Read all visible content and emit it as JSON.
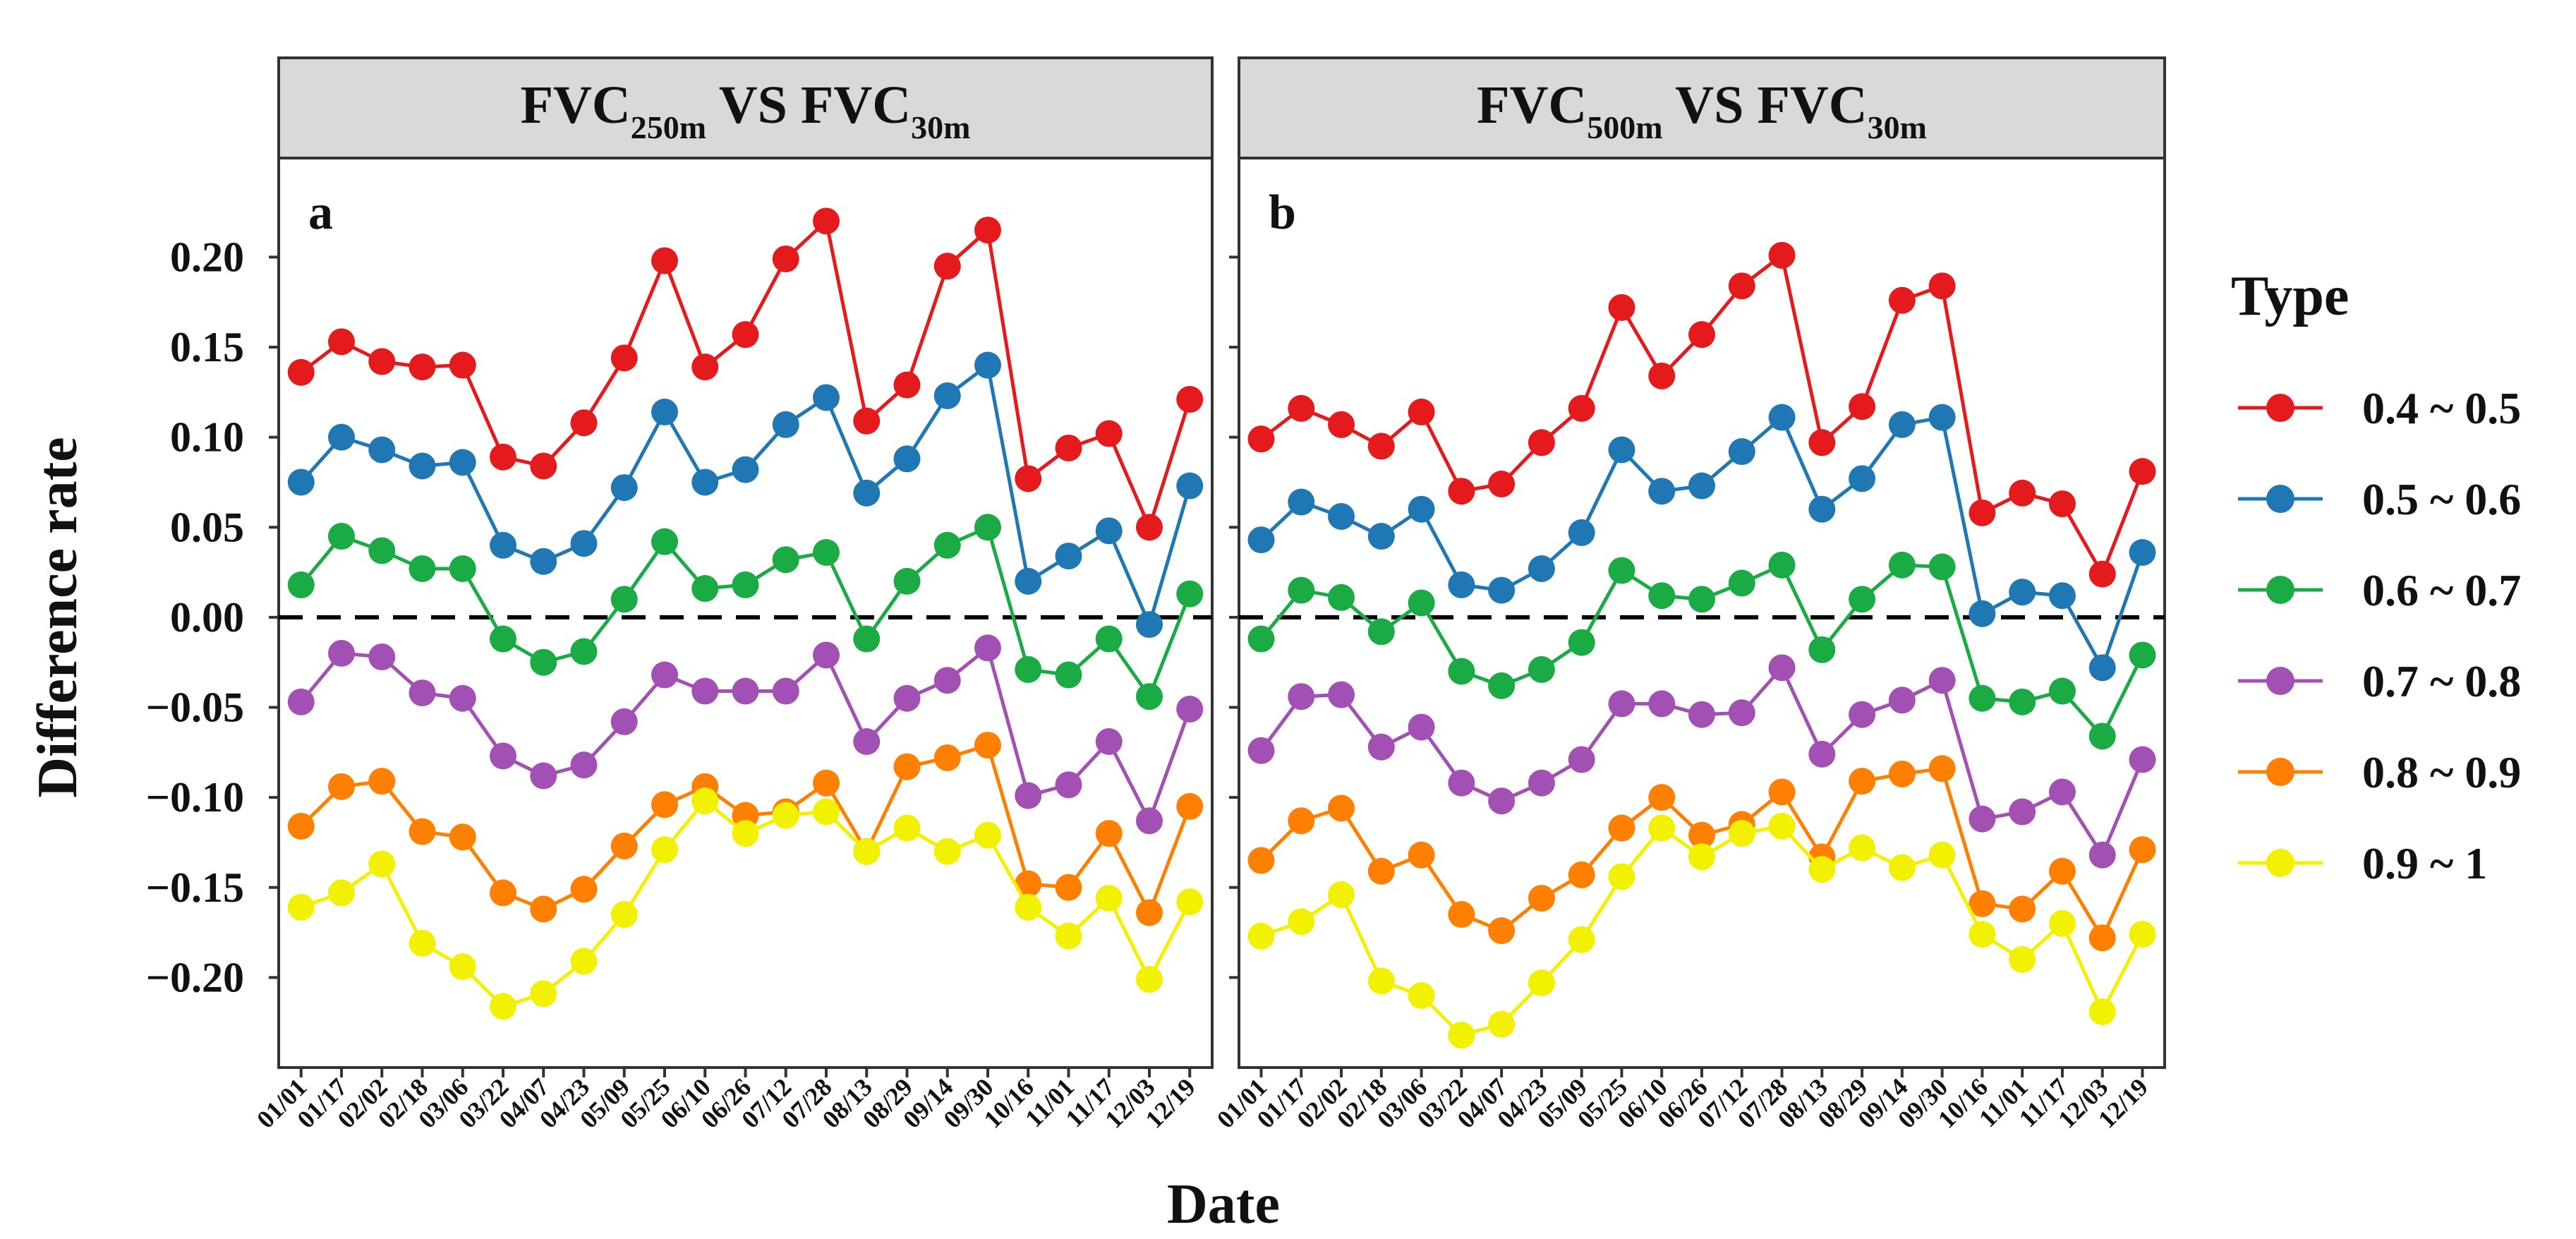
{
  "chart_data": {
    "type": "line",
    "y_axis_label": "Difference rate",
    "x_axis_label": "Date",
    "ylim": [
      -0.25,
      0.255
    ],
    "y_ticks": [
      "0.20",
      "0.15",
      "0.10",
      "0.05",
      "0.00",
      "−0.05",
      "−0.10",
      "−0.15",
      "−0.20"
    ],
    "y_tick_values": [
      0.2,
      0.15,
      0.1,
      0.05,
      0.0,
      -0.05,
      -0.1,
      -0.15,
      -0.2
    ],
    "reference_line": 0.0,
    "dates": [
      "01/01",
      "01/17",
      "02/02",
      "02/18",
      "03/06",
      "03/22",
      "04/07",
      "04/23",
      "05/09",
      "05/25",
      "06/10",
      "06/26",
      "07/12",
      "07/28",
      "08/13",
      "08/29",
      "09/14",
      "09/30",
      "10/16",
      "11/01",
      "11/17",
      "12/03",
      "12/19"
    ],
    "legend": {
      "title": "Type",
      "entries": [
        {
          "label": "0.4 ~ 0.5",
          "color": "#e41a1c"
        },
        {
          "label": "0.5 ~ 0.6",
          "color": "#1f78b4"
        },
        {
          "label": "0.6 ~ 0.7",
          "color": "#1aab44"
        },
        {
          "label": "0.7 ~ 0.8",
          "color": "#a350b5"
        },
        {
          "label": "0.8 ~ 0.9",
          "color": "#ff7f00"
        },
        {
          "label": "0.9 ~ 1",
          "color": "#f2f200"
        }
      ]
    },
    "panels": [
      {
        "letter": "a",
        "title": {
          "main": "FVC",
          "sub1": "250m",
          "vs": " VS FVC",
          "sub2": "30m"
        },
        "series": [
          {
            "name": "0.4 ~ 0.5",
            "values": [
              0.136,
              0.153,
              0.142,
              0.139,
              0.14,
              0.089,
              0.084,
              0.108,
              0.144,
              0.198,
              0.139,
              0.157,
              0.199,
              0.22,
              0.109,
              0.129,
              0.195,
              0.215,
              0.077,
              0.094,
              0.102,
              0.05,
              0.121
            ]
          },
          {
            "name": "0.5 ~ 0.6",
            "values": [
              0.075,
              0.1,
              0.093,
              0.084,
              0.086,
              0.04,
              0.031,
              0.041,
              0.072,
              0.114,
              0.075,
              0.082,
              0.107,
              0.122,
              0.069,
              0.088,
              0.123,
              0.14,
              0.02,
              0.034,
              0.048,
              -0.004,
              0.073
            ]
          },
          {
            "name": "0.6 ~ 0.7",
            "values": [
              0.018,
              0.045,
              0.037,
              0.027,
              0.027,
              -0.012,
              -0.025,
              -0.019,
              0.01,
              0.042,
              0.016,
              0.018,
              0.032,
              0.036,
              -0.012,
              0.02,
              0.04,
              0.05,
              -0.029,
              -0.032,
              -0.012,
              -0.044,
              0.013
            ]
          },
          {
            "name": "0.7 ~ 0.8",
            "values": [
              -0.047,
              -0.02,
              -0.022,
              -0.042,
              -0.045,
              -0.077,
              -0.088,
              -0.082,
              -0.058,
              -0.032,
              -0.041,
              -0.041,
              -0.041,
              -0.021,
              -0.069,
              -0.045,
              -0.035,
              -0.017,
              -0.099,
              -0.093,
              -0.069,
              -0.113,
              -0.051
            ]
          },
          {
            "name": "0.8 ~ 0.9",
            "values": [
              -0.116,
              -0.094,
              -0.091,
              -0.119,
              -0.122,
              -0.153,
              -0.162,
              -0.151,
              -0.127,
              -0.104,
              -0.094,
              -0.11,
              -0.108,
              -0.092,
              -0.13,
              -0.083,
              -0.078,
              -0.071,
              -0.148,
              -0.15,
              -0.12,
              -0.164,
              -0.105
            ]
          },
          {
            "name": "0.9 ~ 1",
            "values": [
              -0.161,
              -0.153,
              -0.137,
              -0.181,
              -0.194,
              -0.216,
              -0.209,
              -0.191,
              -0.165,
              -0.129,
              -0.102,
              -0.12,
              -0.11,
              -0.108,
              -0.13,
              -0.117,
              -0.13,
              -0.121,
              -0.161,
              -0.177,
              -0.156,
              -0.201,
              -0.158
            ]
          }
        ]
      },
      {
        "letter": "b",
        "title": {
          "main": "FVC",
          "sub1": "500m",
          "vs": " VS FVC",
          "sub2": "30m"
        },
        "series": [
          {
            "name": "0.4 ~ 0.5",
            "values": [
              0.099,
              0.116,
              0.107,
              0.095,
              0.114,
              0.07,
              0.074,
              0.097,
              0.116,
              0.172,
              0.134,
              0.157,
              0.184,
              0.201,
              0.097,
              0.117,
              0.176,
              0.184,
              0.058,
              0.069,
              0.063,
              0.024,
              0.081
            ]
          },
          {
            "name": "0.5 ~ 0.6",
            "values": [
              0.043,
              0.064,
              0.056,
              0.045,
              0.06,
              0.018,
              0.015,
              0.027,
              0.047,
              0.093,
              0.07,
              0.073,
              0.092,
              0.111,
              0.06,
              0.077,
              0.107,
              0.111,
              0.002,
              0.014,
              0.012,
              -0.028,
              0.036
            ]
          },
          {
            "name": "0.6 ~ 0.7",
            "values": [
              -0.012,
              0.015,
              0.011,
              -0.008,
              0.008,
              -0.03,
              -0.038,
              -0.029,
              -0.014,
              0.026,
              0.012,
              0.01,
              0.019,
              0.029,
              -0.018,
              0.01,
              0.029,
              0.028,
              -0.045,
              -0.047,
              -0.041,
              -0.066,
              -0.021
            ]
          },
          {
            "name": "0.7 ~ 0.8",
            "values": [
              -0.074,
              -0.044,
              -0.043,
              -0.072,
              -0.061,
              -0.092,
              -0.102,
              -0.092,
              -0.079,
              -0.048,
              -0.048,
              -0.054,
              -0.053,
              -0.028,
              -0.076,
              -0.054,
              -0.046,
              -0.035,
              -0.112,
              -0.108,
              -0.097,
              -0.132,
              -0.079
            ]
          },
          {
            "name": "0.8 ~ 0.9",
            "values": [
              -0.135,
              -0.113,
              -0.106,
              -0.141,
              -0.132,
              -0.165,
              -0.174,
              -0.156,
              -0.143,
              -0.117,
              -0.1,
              -0.121,
              -0.115,
              -0.097,
              -0.133,
              -0.091,
              -0.087,
              -0.084,
              -0.159,
              -0.162,
              -0.141,
              -0.178,
              -0.129
            ]
          },
          {
            "name": "0.9 ~ 1",
            "values": [
              -0.177,
              -0.169,
              -0.154,
              -0.202,
              -0.21,
              -0.232,
              -0.226,
              -0.203,
              -0.179,
              -0.144,
              -0.117,
              -0.133,
              -0.12,
              -0.116,
              -0.14,
              -0.128,
              -0.139,
              -0.132,
              -0.176,
              -0.19,
              -0.17,
              -0.219,
              -0.176
            ]
          }
        ]
      }
    ]
  }
}
